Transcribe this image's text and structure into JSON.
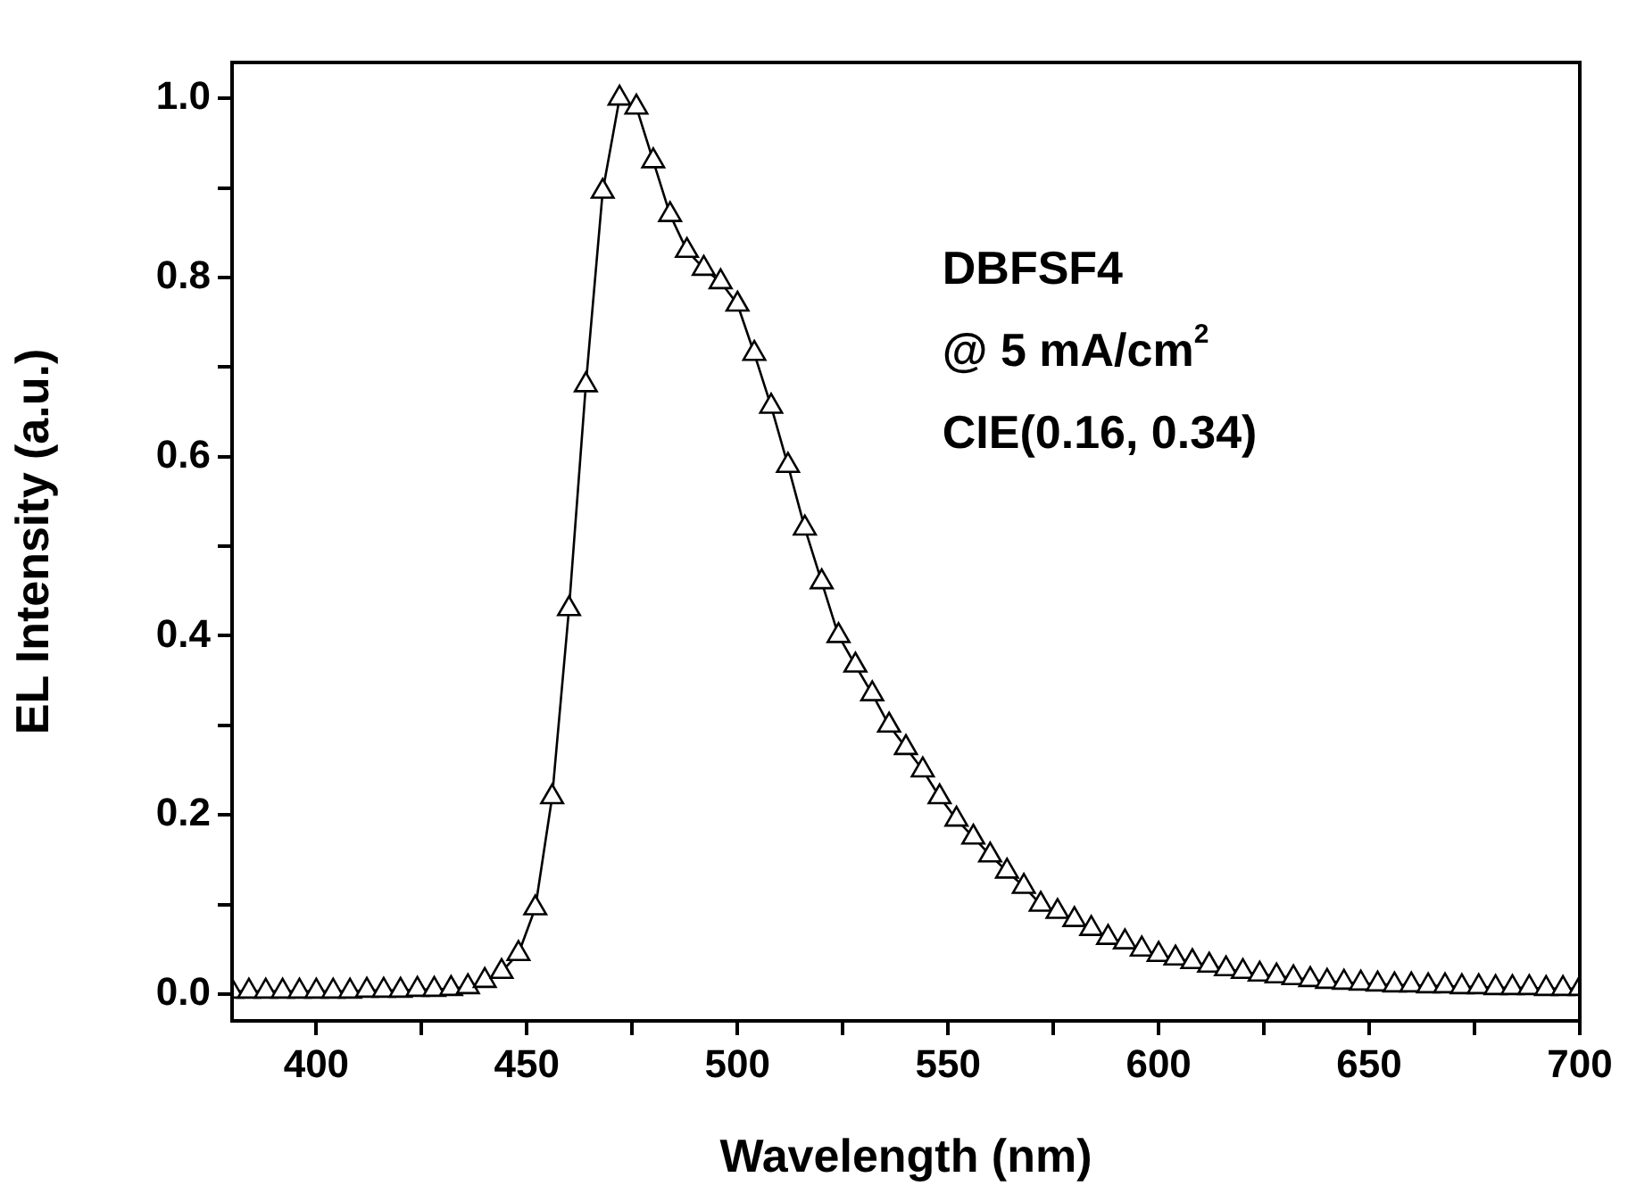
{
  "chart_data": {
    "type": "line",
    "xlabel": "Wavelength (nm)",
    "ylabel": "EL Intensity (a.u.)",
    "annotations": [
      "DBFSF4",
      "@ 5 mA/cm$^{2}$",
      "CIE(0.16, 0.34)"
    ],
    "x": [
      380,
      384,
      388,
      392,
      396,
      400,
      404,
      408,
      412,
      416,
      420,
      424,
      428,
      432,
      436,
      440,
      444,
      448,
      452,
      456,
      460,
      464,
      468,
      472,
      476,
      480,
      484,
      488,
      492,
      496,
      500,
      504,
      508,
      512,
      516,
      520,
      524,
      528,
      532,
      536,
      540,
      544,
      548,
      552,
      556,
      560,
      564,
      568,
      572,
      576,
      580,
      584,
      588,
      592,
      596,
      600,
      604,
      608,
      612,
      616,
      620,
      624,
      628,
      632,
      636,
      640,
      644,
      648,
      652,
      656,
      660,
      664,
      668,
      672,
      676,
      680,
      684,
      688,
      692,
      696,
      700
    ],
    "series": [
      {
        "color": "#000000",
        "values": [
          0.003,
          0.003,
          0.003,
          0.003,
          0.003,
          0.003,
          0.003,
          0.003,
          0.004,
          0.004,
          0.004,
          0.005,
          0.005,
          0.006,
          0.008,
          0.015,
          0.025,
          0.045,
          0.096,
          0.22,
          0.43,
          0.68,
          0.896,
          1.0,
          0.99,
          0.93,
          0.87,
          0.83,
          0.81,
          0.795,
          0.77,
          0.715,
          0.656,
          0.59,
          0.52,
          0.46,
          0.4,
          0.367,
          0.335,
          0.3,
          0.275,
          0.25,
          0.22,
          0.195,
          0.175,
          0.155,
          0.137,
          0.12,
          0.1,
          0.092,
          0.083,
          0.073,
          0.063,
          0.058,
          0.05,
          0.044,
          0.04,
          0.036,
          0.032,
          0.028,
          0.025,
          0.022,
          0.02,
          0.018,
          0.016,
          0.014,
          0.013,
          0.012,
          0.011,
          0.01,
          0.01,
          0.009,
          0.009,
          0.008,
          0.008,
          0.007,
          0.007,
          0.007,
          0.006,
          0.006,
          0.006
        ]
      }
    ],
    "xlim": [
      380,
      700
    ],
    "xticks": [
      400,
      {
        "value": 425,
        "label": null
      },
      450,
      {
        "value": 475,
        "label": null
      },
      500,
      {
        "value": 525,
        "label": null
      },
      550,
      {
        "value": 575,
        "label": null
      },
      600,
      {
        "value": 625,
        "label": null
      },
      650,
      {
        "value": 675,
        "label": null
      },
      700
    ],
    "ylim": [
      -0.03,
      1.04
    ],
    "yticks": [
      {
        "value": 0,
        "label": "0.0"
      },
      {
        "value": 0.1,
        "label": null
      },
      {
        "value": 0.2,
        "label": "0.2"
      },
      {
        "value": 0.3,
        "label": null
      },
      {
        "value": 0.4,
        "label": "0.4"
      },
      {
        "value": 0.5,
        "label": null
      },
      {
        "value": 0.6,
        "label": "0.6"
      },
      {
        "value": 0.7,
        "label": null
      },
      {
        "value": 0.8,
        "label": "0.8"
      },
      {
        "value": 0.9,
        "label": null
      },
      {
        "value": 1.0,
        "label": "1.0"
      }
    ],
    "grid": false,
    "legend": false,
    "marker": "triangle",
    "line_style": "solid"
  }
}
